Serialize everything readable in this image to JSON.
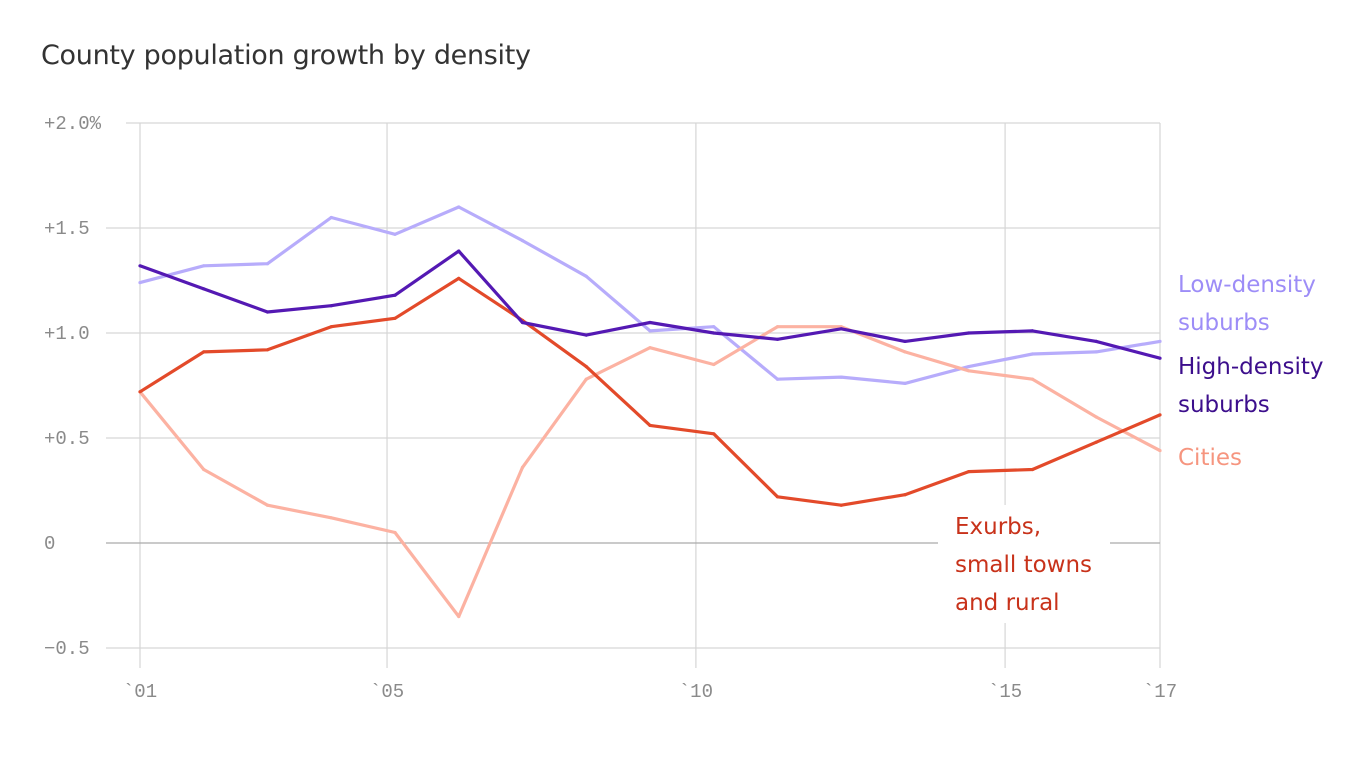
{
  "chart_data": {
    "type": "line",
    "title": "County population growth by density",
    "xlabel": "",
    "ylabel": "",
    "x": [
      2001,
      2002,
      2003,
      2004,
      2005,
      2006,
      2007,
      2008,
      2009,
      2010,
      2011,
      2012,
      2013,
      2014,
      2015,
      2016,
      2017
    ],
    "x_tick_labels": [
      "`01",
      "`05",
      "`10",
      "`15",
      "`17"
    ],
    "y_tick_labels": [
      "+2.0%",
      "+1.5",
      "+1.0",
      "+0.5",
      "0",
      "−0.5"
    ],
    "y_ticks": [
      2.0,
      1.5,
      1.0,
      0.5,
      0,
      -0.5
    ],
    "ylim": [
      -0.5,
      2.0
    ],
    "grid": true,
    "legend": "direct labels at right",
    "series": [
      {
        "name": "Low-density suburbs",
        "label_lines": [
          "Low-density",
          "suburbs"
        ],
        "color": "#b7acfb",
        "label_color": "#9d8df7",
        "values": [
          1.24,
          1.32,
          1.33,
          1.55,
          1.47,
          1.6,
          1.44,
          1.27,
          1.01,
          1.03,
          0.78,
          0.79,
          0.76,
          0.84,
          0.9,
          0.91,
          0.96
        ]
      },
      {
        "name": "High-density suburbs",
        "label_lines": [
          "High-density",
          "suburbs"
        ],
        "color": "#5419b3",
        "label_color": "#3c0e8c",
        "values": [
          1.32,
          1.21,
          1.1,
          1.13,
          1.18,
          1.39,
          1.05,
          0.99,
          1.05,
          1.0,
          0.97,
          1.02,
          0.96,
          1.0,
          1.01,
          0.96,
          0.88
        ]
      },
      {
        "name": "Cities",
        "label_lines": [
          "Cities"
        ],
        "color": "#fcb2a2",
        "label_color": "#f6957f",
        "values": [
          0.72,
          0.35,
          0.18,
          0.12,
          0.05,
          -0.35,
          0.36,
          0.78,
          0.93,
          0.85,
          1.03,
          1.03,
          0.91,
          0.82,
          0.78,
          0.6,
          0.44
        ]
      },
      {
        "name": "Exurbs, small towns and rural",
        "label_lines": [
          "Exurbs,",
          "small towns",
          "and rural"
        ],
        "color": "#e34a2a",
        "label_color": "#c8321a",
        "values": [
          0.72,
          0.91,
          0.92,
          1.03,
          1.07,
          1.26,
          1.06,
          0.84,
          0.56,
          0.52,
          0.22,
          0.18,
          0.23,
          0.34,
          0.35,
          0.48,
          0.61
        ]
      }
    ]
  }
}
